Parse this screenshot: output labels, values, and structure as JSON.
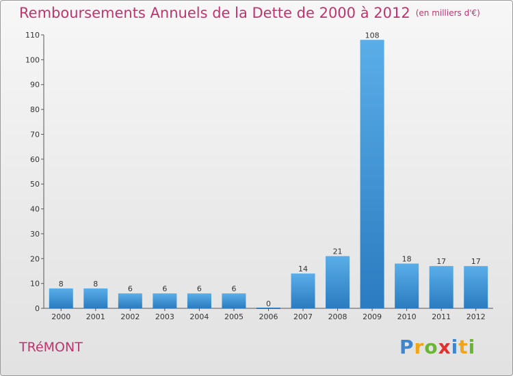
{
  "header": {
    "title": "Remboursements Annuels de la Dette de 2000 à 2012",
    "unit": "(en milliers d'€)"
  },
  "footer": {
    "commune": "TRéMONT",
    "logo_letters": [
      {
        "ch": "P",
        "color": "#3f86d0"
      },
      {
        "ch": "r",
        "color": "#f0a51a"
      },
      {
        "ch": "o",
        "color": "#6bb535"
      },
      {
        "ch": "x",
        "color": "#e0312f"
      },
      {
        "ch": "i",
        "color": "#3f86d0"
      },
      {
        "ch": "t",
        "color": "#f0a51a"
      },
      {
        "ch": "i",
        "color": "#6bb535"
      }
    ]
  },
  "chart_data": {
    "type": "bar",
    "title": "Remboursements Annuels de la Dette de 2000 à 2012",
    "subtitle": "(en milliers d'€)",
    "categories": [
      "2000",
      "2001",
      "2002",
      "2003",
      "2004",
      "2005",
      "2006",
      "2007",
      "2008",
      "2009",
      "2010",
      "2011",
      "2012"
    ],
    "values": [
      8,
      8,
      6,
      6,
      6,
      6,
      0,
      14,
      21,
      108,
      18,
      17,
      17
    ],
    "ylim": [
      0,
      110
    ],
    "yticks": [
      0,
      10,
      20,
      30,
      40,
      50,
      60,
      70,
      80,
      90,
      100,
      110
    ],
    "grid": false,
    "bar_color_top": "#5aaee8",
    "bar_color_bottom": "#2a7bc0"
  }
}
